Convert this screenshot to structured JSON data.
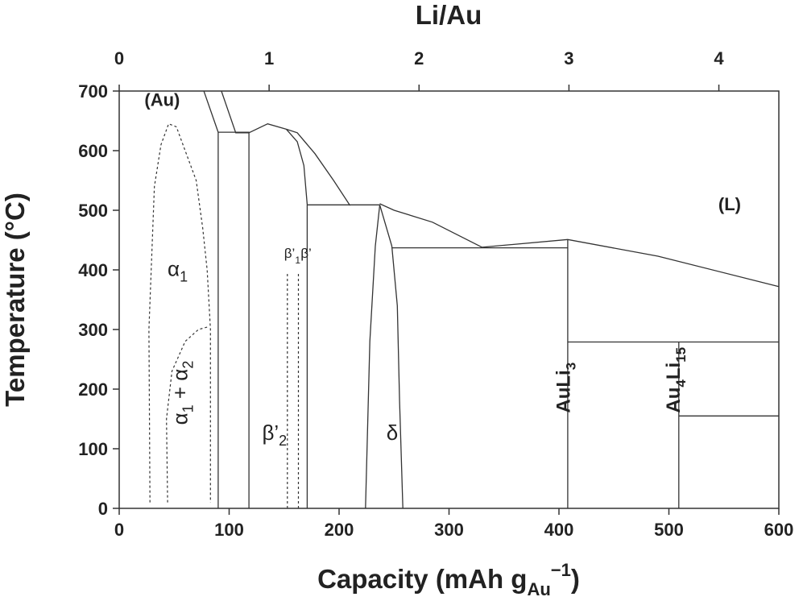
{
  "chart_data": {
    "type": "line",
    "title": "",
    "xlabel": "Capacity (mAh g",
    "xlabel_sub": "Au",
    "xlabel_sup": "−1",
    "xlabel_close": ")",
    "ylabel": "Temperature (°C)",
    "x2label": "Li/Au",
    "xlim": [
      0,
      600
    ],
    "ylim": [
      0,
      700
    ],
    "x2lim": [
      0,
      4.4
    ],
    "xticks": [
      0,
      100,
      200,
      300,
      400,
      500,
      600
    ],
    "yticks": [
      0,
      100,
      200,
      300,
      400,
      500,
      600,
      700
    ],
    "x2ticks": [
      0,
      1,
      2,
      3,
      4
    ],
    "phase_labels": [
      {
        "id": "au",
        "text": "(Au)",
        "x": 23,
        "y": 675
      },
      {
        "id": "l",
        "text": "(L)",
        "x": 545,
        "y": 500
      },
      {
        "id": "alpha1",
        "text": "α",
        "sub": "1",
        "x": 44,
        "y": 390
      },
      {
        "id": "alpha1alpha2",
        "text": "α",
        "sub": "1",
        "text2": " + α",
        "sub2": "2",
        "x": 62,
        "y": 140,
        "rotate": -90
      },
      {
        "id": "beta2",
        "text": "β’",
        "sub": "2",
        "x": 130,
        "y": 115
      },
      {
        "id": "beta1",
        "text": "β’",
        "sub": "1",
        "x": 150,
        "y": 420
      },
      {
        "id": "beta",
        "text": "β’",
        "x": 165,
        "y": 420
      },
      {
        "id": "delta",
        "text": "δ",
        "x": 243,
        "y": 115
      },
      {
        "id": "auli3",
        "text": "AuLi",
        "sub": "3",
        "x": 410,
        "y": 160,
        "rotate": -90
      },
      {
        "id": "au4li15",
        "text": "Au",
        "sub": "4",
        "text2": "Li",
        "sub2": "15",
        "x": 510,
        "y": 160,
        "rotate": -90
      }
    ],
    "boundaries_solid": [
      [
        [
          77,
          700
        ],
        [
          90,
          631
        ],
        [
          90,
          0
        ]
      ],
      [
        [
          93,
          700
        ],
        [
          106,
          630
        ],
        [
          118,
          630
        ]
      ],
      [
        [
          90,
          631
        ],
        [
          118,
          631
        ],
        [
          118,
          0
        ]
      ],
      [
        [
          118,
          630
        ],
        [
          135,
          645
        ],
        [
          152,
          636
        ]
      ],
      [
        [
          152,
          636
        ],
        [
          162,
          615
        ],
        [
          168,
          575
        ],
        [
          171,
          510
        ],
        [
          171,
          0
        ]
      ],
      [
        [
          152,
          636
        ],
        [
          162,
          630
        ],
        [
          178,
          595
        ],
        [
          195,
          550
        ],
        [
          210,
          508
        ]
      ],
      [
        [
          171,
          509
        ],
        [
          237,
          509
        ]
      ],
      [
        [
          237,
          511
        ],
        [
          250,
          500
        ],
        [
          285,
          480
        ],
        [
          330,
          438
        ]
      ],
      [
        [
          237,
          509
        ],
        [
          233,
          440
        ],
        [
          228,
          280
        ],
        [
          224,
          0
        ]
      ],
      [
        [
          237,
          509
        ],
        [
          248,
          440
        ],
        [
          253,
          340
        ],
        [
          255,
          180
        ],
        [
          258,
          0
        ]
      ],
      [
        [
          248,
          437
        ],
        [
          408,
          437
        ]
      ],
      [
        [
          330,
          438
        ],
        [
          408,
          451
        ],
        [
          490,
          423
        ],
        [
          600,
          372
        ]
      ],
      [
        [
          408,
          451
        ],
        [
          408,
          0
        ]
      ],
      [
        [
          408,
          279
        ],
        [
          600,
          279
        ]
      ],
      [
        [
          509,
          279
        ],
        [
          509,
          0
        ]
      ],
      [
        [
          509,
          155
        ],
        [
          600,
          155
        ]
      ]
    ],
    "boundaries_dashed": [
      [
        [
          28,
          10
        ],
        [
          27,
          300
        ],
        [
          32,
          540
        ],
        [
          38,
          610
        ],
        [
          45,
          645
        ],
        [
          52,
          640
        ],
        [
          60,
          600
        ],
        [
          70,
          550
        ],
        [
          76,
          470
        ],
        [
          80,
          400
        ],
        [
          83,
          300
        ],
        [
          83,
          10
        ]
      ],
      [
        [
          44,
          10
        ],
        [
          43,
          150
        ],
        [
          48,
          230
        ],
        [
          60,
          280
        ],
        [
          72,
          300
        ],
        [
          82,
          305
        ]
      ],
      [
        [
          153,
          0
        ],
        [
          153,
          395
        ]
      ],
      [
        [
          163,
          0
        ],
        [
          163,
          395
        ]
      ]
    ]
  }
}
